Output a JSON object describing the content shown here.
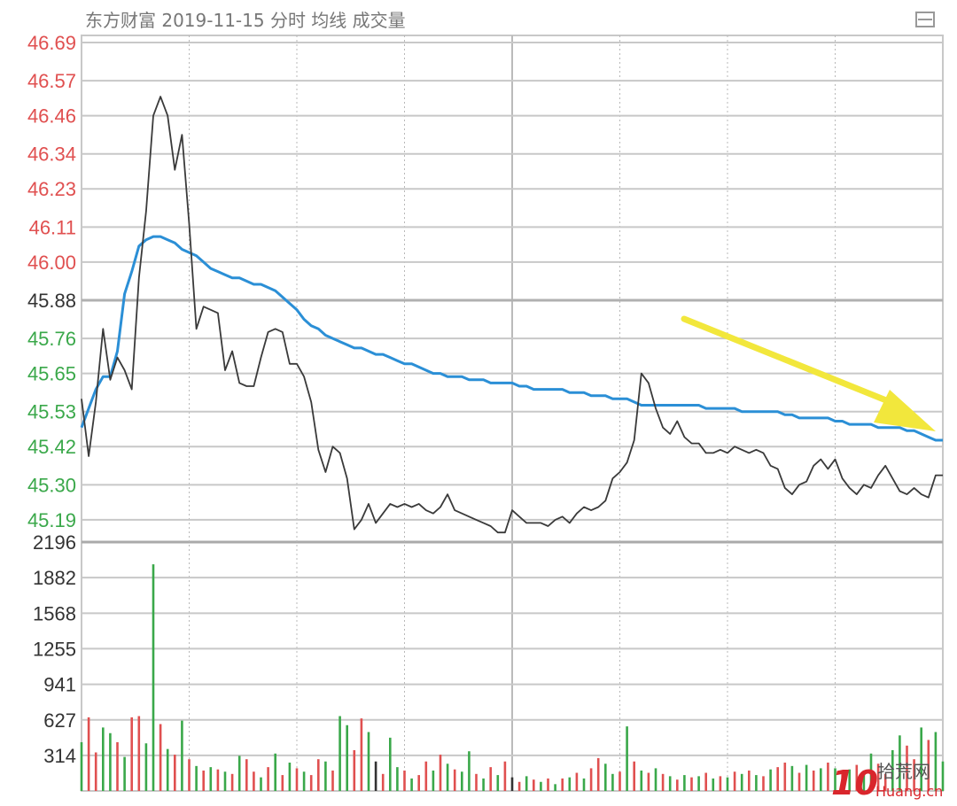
{
  "header": {
    "text": "东方财富  2019-11-15 分时  均线  成交量",
    "menu_icon": "window-control-icon"
  },
  "watermark": {
    "logo_text": "10",
    "brand_cn": "拾荒网",
    "brand_en": "Huang.cn"
  },
  "colors": {
    "price_line": "#3a3a3a",
    "avg_line": "#2b8fd6",
    "arrow": "#f2e73c",
    "up": "#e05050",
    "down": "#3aa84a",
    "neutral": "#333333",
    "grid": "#c8c8c8",
    "grid_dotted": "#b8b8b8"
  },
  "chart_data": [
    {
      "type": "line",
      "title": "",
      "ylim": [
        45.12,
        46.69
      ],
      "y_ticks": [
        {
          "label": "46.69",
          "value": 46.69,
          "color": "up"
        },
        {
          "label": "46.57",
          "value": 46.57,
          "color": "up"
        },
        {
          "label": "46.46",
          "value": 46.46,
          "color": "up"
        },
        {
          "label": "46.34",
          "value": 46.34,
          "color": "up"
        },
        {
          "label": "46.23",
          "value": 46.23,
          "color": "up"
        },
        {
          "label": "46.11",
          "value": 46.11,
          "color": "up"
        },
        {
          "label": "46.00",
          "value": 46.0,
          "color": "up"
        },
        {
          "label": "45.88",
          "value": 45.88,
          "color": "neutral"
        },
        {
          "label": "45.76",
          "value": 45.76,
          "color": "down"
        },
        {
          "label": "45.65",
          "value": 45.65,
          "color": "down"
        },
        {
          "label": "45.53",
          "value": 45.53,
          "color": "down"
        },
        {
          "label": "45.42",
          "value": 45.42,
          "color": "down"
        },
        {
          "label": "45.30",
          "value": 45.3,
          "color": "down"
        },
        {
          "label": "45.19",
          "value": 45.19,
          "color": "down"
        }
      ],
      "x_minutes": [
        0,
        2,
        4,
        6,
        8,
        10,
        12,
        14,
        16,
        18,
        20,
        22,
        24,
        26,
        28,
        30,
        32,
        34,
        36,
        38,
        40,
        42,
        44,
        46,
        48,
        50,
        52,
        54,
        56,
        58,
        60,
        62,
        64,
        66,
        68,
        70,
        72,
        74,
        76,
        78,
        80,
        82,
        84,
        86,
        88,
        90,
        92,
        94,
        96,
        98,
        100,
        102,
        104,
        106,
        108,
        110,
        112,
        114,
        116,
        118,
        120,
        122,
        124,
        126,
        128,
        130,
        132,
        134,
        136,
        138,
        140,
        142,
        144,
        146,
        148,
        150,
        152,
        154,
        156,
        158,
        160,
        162,
        164,
        166,
        168,
        170,
        172,
        174,
        176,
        178,
        180,
        182,
        184,
        186,
        188,
        190,
        192,
        194,
        196,
        198,
        200,
        202,
        204,
        206,
        208,
        210,
        212,
        214,
        216,
        218,
        220,
        222,
        224,
        226,
        228,
        230,
        232,
        234,
        236,
        238,
        240
      ],
      "series": [
        {
          "values": [
            45.57,
            45.39,
            45.56,
            45.79,
            45.63,
            45.7,
            45.66,
            45.6,
            45.95,
            46.16,
            46.46,
            46.52,
            46.46,
            46.29,
            46.4,
            46.12,
            45.79,
            45.86,
            45.85,
            45.84,
            45.66,
            45.72,
            45.62,
            45.61,
            45.61,
            45.7,
            45.78,
            45.79,
            45.78,
            45.68,
            45.68,
            45.64,
            45.56,
            45.41,
            45.34,
            45.42,
            45.4,
            45.32,
            45.16,
            45.19,
            45.24,
            45.18,
            45.21,
            45.24,
            45.23,
            45.24,
            45.23,
            45.24,
            45.22,
            45.21,
            45.23,
            45.27,
            45.22,
            45.21,
            45.2,
            45.19,
            45.18,
            45.17,
            45.15,
            45.15,
            45.22,
            45.2,
            45.18,
            45.18,
            45.18,
            45.17,
            45.19,
            45.2,
            45.18,
            45.21,
            45.23,
            45.22,
            45.23,
            45.25,
            45.32,
            45.34,
            45.37,
            45.44,
            45.65,
            45.62,
            45.54,
            45.48,
            45.46,
            45.5,
            45.45,
            45.43,
            45.43,
            45.4,
            45.4,
            45.41,
            45.4,
            45.42,
            45.41,
            45.4,
            45.41,
            45.4,
            45.36,
            45.35,
            45.29,
            45.27,
            45.3,
            45.31,
            45.36,
            45.38,
            45.35,
            45.38,
            45.32,
            45.29,
            45.27,
            45.3,
            45.29,
            45.33,
            45.36,
            45.32,
            45.28,
            45.27,
            45.29,
            45.27,
            45.26,
            45.33,
            45.33
          ]
        },
        {
          "values": [
            45.48,
            45.54,
            45.6,
            45.64,
            45.64,
            45.72,
            45.9,
            45.97,
            46.05,
            46.07,
            46.08,
            46.08,
            46.07,
            46.06,
            46.04,
            46.03,
            46.02,
            46.0,
            45.98,
            45.97,
            45.96,
            45.95,
            45.95,
            45.94,
            45.93,
            45.93,
            45.92,
            45.91,
            45.89,
            45.87,
            45.85,
            45.82,
            45.8,
            45.79,
            45.77,
            45.76,
            45.75,
            45.74,
            45.73,
            45.73,
            45.72,
            45.71,
            45.71,
            45.7,
            45.69,
            45.68,
            45.68,
            45.67,
            45.66,
            45.65,
            45.65,
            45.64,
            45.64,
            45.64,
            45.63,
            45.63,
            45.63,
            45.62,
            45.62,
            45.62,
            45.62,
            45.61,
            45.61,
            45.6,
            45.6,
            45.6,
            45.6,
            45.6,
            45.59,
            45.59,
            45.59,
            45.58,
            45.58,
            45.58,
            45.57,
            45.57,
            45.57,
            45.56,
            45.55,
            45.55,
            45.55,
            45.55,
            45.55,
            45.55,
            45.55,
            45.55,
            45.55,
            45.54,
            45.54,
            45.54,
            45.54,
            45.54,
            45.53,
            45.53,
            45.53,
            45.53,
            45.53,
            45.53,
            45.52,
            45.52,
            45.51,
            45.51,
            45.51,
            45.51,
            45.51,
            45.5,
            45.5,
            45.49,
            45.49,
            45.49,
            45.49,
            45.48,
            45.48,
            45.48,
            45.48,
            45.47,
            45.47,
            45.46,
            45.45,
            45.44,
            45.44
          ]
        }
      ]
    },
    {
      "type": "bar",
      "title": "",
      "ylim": [
        0,
        2196
      ],
      "y_ticks": [
        {
          "label": "2196",
          "value": 2196
        },
        {
          "label": "1882",
          "value": 1882
        },
        {
          "label": "1568",
          "value": 1568
        },
        {
          "label": "1255",
          "value": 1255
        },
        {
          "label": "941",
          "value": 941
        },
        {
          "label": "627",
          "value": 627
        },
        {
          "label": "314",
          "value": 314
        }
      ],
      "x_minutes": [
        0,
        2,
        4,
        6,
        8,
        10,
        12,
        14,
        16,
        18,
        20,
        22,
        24,
        26,
        28,
        30,
        32,
        34,
        36,
        38,
        40,
        42,
        44,
        46,
        48,
        50,
        52,
        54,
        56,
        58,
        60,
        62,
        64,
        66,
        68,
        70,
        72,
        74,
        76,
        78,
        80,
        82,
        84,
        86,
        88,
        90,
        92,
        94,
        96,
        98,
        100,
        102,
        104,
        106,
        108,
        110,
        112,
        114,
        116,
        118,
        120,
        122,
        124,
        126,
        128,
        130,
        132,
        134,
        136,
        138,
        140,
        142,
        144,
        146,
        148,
        150,
        152,
        154,
        156,
        158,
        160,
        162,
        164,
        166,
        168,
        170,
        172,
        174,
        176,
        178,
        180,
        182,
        184,
        186,
        188,
        190,
        192,
        194,
        196,
        198,
        200,
        202,
        204,
        206,
        208,
        210,
        212,
        214,
        216,
        218,
        220,
        222,
        224,
        226,
        228,
        230,
        232,
        234,
        236,
        238,
        240
      ],
      "values": [
        430,
        650,
        340,
        560,
        510,
        430,
        300,
        650,
        660,
        420,
        2000,
        590,
        370,
        320,
        620,
        280,
        220,
        180,
        210,
        190,
        170,
        150,
        310,
        280,
        170,
        120,
        210,
        330,
        140,
        250,
        200,
        170,
        140,
        280,
        260,
        180,
        660,
        580,
        360,
        640,
        520,
        260,
        150,
        470,
        210,
        180,
        110,
        140,
        260,
        180,
        320,
        240,
        190,
        170,
        350,
        150,
        110,
        210,
        140,
        260,
        120,
        80,
        130,
        100,
        80,
        110,
        60,
        110,
        120,
        160,
        110,
        200,
        290,
        240,
        150,
        170,
        570,
        260,
        180,
        160,
        200,
        150,
        130,
        100,
        140,
        120,
        130,
        160,
        110,
        130,
        120,
        170,
        150,
        180,
        140,
        130,
        190,
        210,
        250,
        220,
        160,
        230,
        180,
        200,
        250,
        200,
        170,
        190,
        230,
        180,
        330,
        240,
        150,
        360,
        490,
        400,
        280,
        560,
        450,
        520,
        260
      ],
      "colors": [
        "down",
        "up",
        "up",
        "down",
        "down",
        "up",
        "down",
        "up",
        "up",
        "down",
        "down",
        "up",
        "down",
        "up",
        "down",
        "up",
        "down",
        "up",
        "down",
        "up",
        "down",
        "up",
        "down",
        "up",
        "up",
        "down",
        "up",
        "down",
        "up",
        "down",
        "up",
        "down",
        "up",
        "up",
        "down",
        "up",
        "down",
        "down",
        "up",
        "up",
        "down",
        "neutral",
        "up",
        "down",
        "down",
        "up",
        "down",
        "up",
        "up",
        "down",
        "up",
        "down",
        "up",
        "down",
        "down",
        "up",
        "down",
        "up",
        "down",
        "up",
        "neutral",
        "up",
        "down",
        "up",
        "down",
        "up",
        "down",
        "up",
        "down",
        "up",
        "down",
        "up",
        "up",
        "down",
        "down",
        "up",
        "down",
        "up",
        "down",
        "up",
        "down",
        "up",
        "down",
        "up",
        "down",
        "up",
        "down",
        "up",
        "down",
        "up",
        "down",
        "up",
        "down",
        "up",
        "down",
        "up",
        "down",
        "up",
        "up",
        "down",
        "up",
        "down",
        "up",
        "down",
        "up",
        "down",
        "up",
        "down",
        "up",
        "down",
        "down",
        "up",
        "up",
        "down",
        "down",
        "up",
        "up",
        "down",
        "up",
        "down",
        "down"
      ]
    }
  ]
}
